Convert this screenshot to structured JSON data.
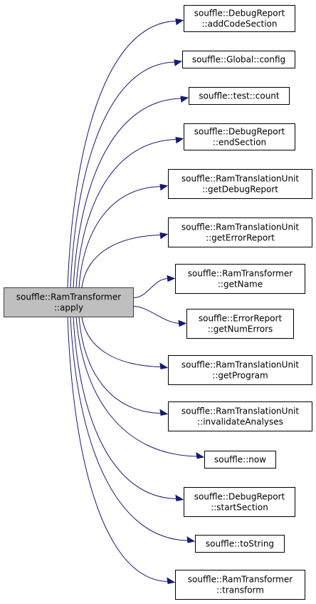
{
  "diagram": {
    "type": "call-graph",
    "edge_color": "#191970",
    "root": {
      "id": "root",
      "lines": [
        "souffle::RamTransformer",
        "::apply"
      ],
      "fill": "#bfbfbf",
      "border": "#404040"
    },
    "callees": [
      {
        "id": "addCodeSection",
        "lines": [
          "souffle::DebugReport",
          "::addCodeSection"
        ]
      },
      {
        "id": "config",
        "lines": [
          "souffle::Global::config"
        ]
      },
      {
        "id": "count",
        "lines": [
          "souffle::test::count"
        ]
      },
      {
        "id": "endSection",
        "lines": [
          "souffle::DebugReport",
          "::endSection"
        ]
      },
      {
        "id": "getDebugReport",
        "lines": [
          "souffle::RamTranslationUnit",
          "::getDebugReport"
        ]
      },
      {
        "id": "getErrorReport",
        "lines": [
          "souffle::RamTranslationUnit",
          "::getErrorReport"
        ]
      },
      {
        "id": "getName",
        "lines": [
          "souffle::RamTransformer",
          "::getName"
        ]
      },
      {
        "id": "getNumErrors",
        "lines": [
          "souffle::ErrorReport",
          "::getNumErrors"
        ]
      },
      {
        "id": "getProgram",
        "lines": [
          "souffle::RamTranslationUnit",
          "::getProgram"
        ]
      },
      {
        "id": "invalidateAnalyses",
        "lines": [
          "souffle::RamTranslationUnit",
          "::invalidateAnalyses"
        ]
      },
      {
        "id": "now",
        "lines": [
          "souffle::now"
        ]
      },
      {
        "id": "startSection",
        "lines": [
          "souffle::DebugReport",
          "::startSection"
        ]
      },
      {
        "id": "toString",
        "lines": [
          "souffle::toString"
        ]
      },
      {
        "id": "transform",
        "lines": [
          "souffle::RamTransformer",
          "::transform"
        ]
      }
    ]
  }
}
